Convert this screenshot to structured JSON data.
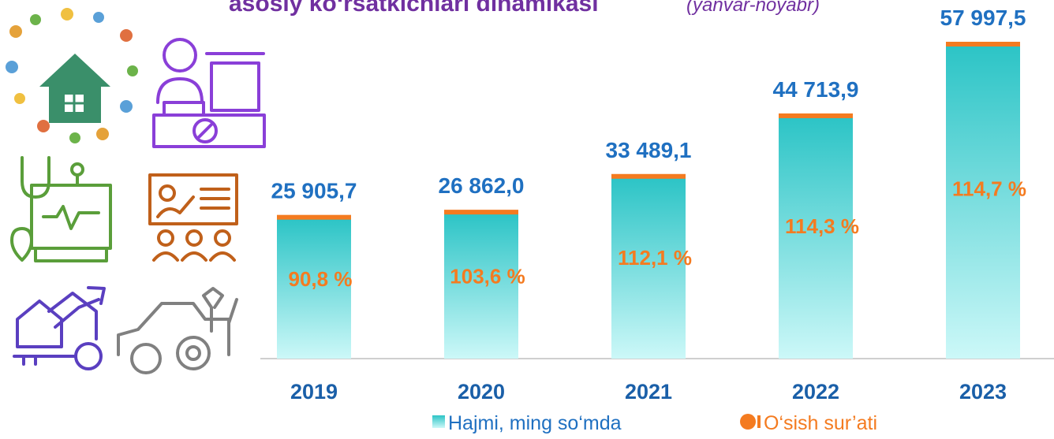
{
  "chart_data": {
    "type": "bar",
    "title": "asosiy ko‘rsatkichlari dinamikasi",
    "subtitle": "(yanvar-noyabr)",
    "categories": [
      "2019",
      "2020",
      "2021",
      "2022",
      "2023"
    ],
    "series": [
      {
        "name": "Hajmi, ming so‘mda",
        "color": "#36c6c8",
        "values": [
          25905.7,
          26862.0,
          33489.1,
          44713.9,
          57997.5
        ],
        "value_labels": [
          "25 905,7",
          "26 862,0",
          "33 489,1",
          "44 713,9",
          "57 997,5"
        ]
      },
      {
        "name": "O‘sish sur’ati",
        "color": "#f47b20",
        "values": [
          90.8,
          103.6,
          112.1,
          114.3,
          114.7
        ],
        "value_labels": [
          "90,8 %",
          "103,6 %",
          "112,1 %",
          "114,3 %",
          "114,7 %"
        ]
      }
    ]
  }
}
